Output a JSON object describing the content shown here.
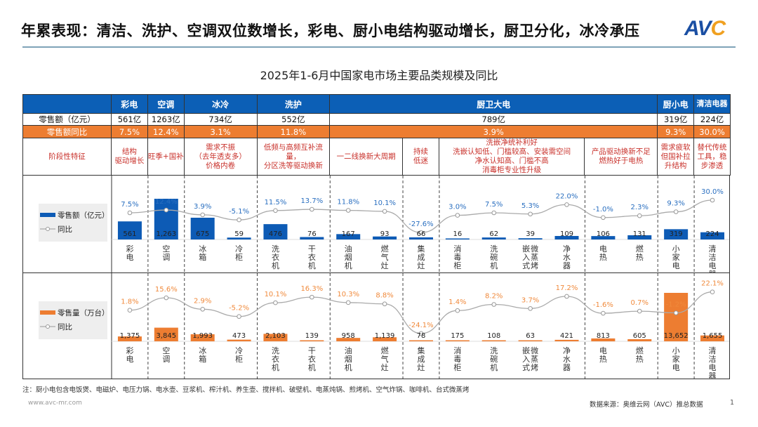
{
  "header": {
    "title": "年累表现：清洁、洗护、空调双位数增长，彩电、厨小电结构驱动增长，厨卫分化，冰冷承压",
    "logo_text": "AVC"
  },
  "subtitle": "2025年1-6月中国家电市场主要品类规模及同比",
  "table": {
    "row_labels": {
      "amount": "零售额（亿元）",
      "yoy": "零售额同比",
      "feature": "阶段性特征"
    },
    "groups": [
      {
        "name": "彩电",
        "amount": "561亿",
        "yoy": "7.5%"
      },
      {
        "name": "空调",
        "amount": "1263亿",
        "yoy": "12.4%"
      },
      {
        "name": "冰冷",
        "amount": "734亿",
        "yoy": "3.1%"
      },
      {
        "name": "洗护",
        "amount": "552亿",
        "yoy": "11.8%"
      },
      {
        "name": "厨卫大电",
        "amount": "789亿",
        "yoy": "3.9%"
      },
      {
        "name": "厨小电",
        "amount": "319亿",
        "yoy": "9.3%"
      },
      {
        "name": "清洁电器",
        "amount": "224亿",
        "yoy": "30.0%"
      }
    ],
    "features": [
      "结构\n驱动增长",
      "旺季+国补",
      "需求不振\n（去年透支多）\n价格内卷",
      "低频与高频互补流量，\n分区洗等驱动换新",
      "一二线换新大周期",
      "持续\n低迷",
      "洗嵌净统补利好\n洗嵌认知低、门槛较高、安装需空间\n净水认知高、门槛不高\n消毒柜专业性升级",
      "产品驱动换新不足\n燃热好于电热",
      "需求疲软但国补拉升结构",
      "替代传统工具，稳步渗透"
    ]
  },
  "chart_data": [
    {
      "type": "bar+line",
      "legend": {
        "bar": "零售额（亿元）",
        "line": "同比"
      },
      "categories": [
        "彩电",
        "空调",
        "冰箱",
        "冷柜",
        "洗衣机",
        "干衣机",
        "油烟机",
        "燃气灶",
        "集成灶",
        "消毒柜",
        "洗碗机",
        "嵌入式微蒸烤",
        "净水器",
        "电热",
        "燃热",
        "小家电",
        "清洁电器"
      ],
      "values": [
        561,
        1263,
        675,
        59,
        476,
        76,
        167,
        93,
        66,
        16,
        62,
        39,
        109,
        106,
        131,
        319,
        224
      ],
      "value_labels": [
        "561",
        "1,263",
        "675",
        "59",
        "476",
        "76",
        "167",
        "93",
        "66",
        "16",
        "62",
        "39",
        "109",
        "106",
        "131",
        "319",
        "224"
      ],
      "yoy": [
        7.5,
        12.4,
        3.9,
        -5.1,
        11.5,
        13.7,
        11.8,
        10.1,
        -27.6,
        3.0,
        7.5,
        5.3,
        22.0,
        -1.0,
        2.3,
        9.3,
        30.0
      ],
      "yoy_labels": [
        "7.5%",
        "12.4%",
        "3.9%",
        "-5.1%",
        "11.5%",
        "13.7%",
        "11.8%",
        "10.1%",
        "-27.6%",
        "3.0%",
        "7.5%",
        "5.3%",
        "22.0%",
        "-1.0%",
        "2.3%",
        "9.3%",
        "30.0%"
      ],
      "bar_color": "#0d5bb5",
      "label_color": "#2a6fc0"
    },
    {
      "type": "bar+line",
      "legend": {
        "bar": "零售量（万台）",
        "line": "同比"
      },
      "categories": [
        "彩电",
        "空调",
        "冰箱",
        "冷柜",
        "洗衣机",
        "干衣机",
        "油烟机",
        "燃气灶",
        "集成灶",
        "消毒柜",
        "洗碗机",
        "嵌入式微蒸烤",
        "净水器",
        "电热",
        "燃热",
        "小家电",
        "清洁电器"
      ],
      "values": [
        1375,
        3845,
        1993,
        473,
        2103,
        139,
        958,
        1139,
        78,
        175,
        108,
        63,
        421,
        813,
        605,
        13652,
        1655
      ],
      "value_labels": [
        "1,375",
        "3,845",
        "1,993",
        "473",
        "2,103",
        "139",
        "958",
        "1,139",
        "78",
        "175",
        "108",
        "63",
        "421",
        "813",
        "605",
        "13,652",
        "1,655"
      ],
      "yoy": [
        1.8,
        15.6,
        2.9,
        -5.2,
        10.1,
        16.3,
        10.3,
        8.8,
        -24.1,
        1.4,
        8.2,
        3.7,
        17.2,
        -1.6,
        0.7,
        -1.2,
        22.1
      ],
      "yoy_labels": [
        "1.8%",
        "15.6%",
        "2.9%",
        "-5.2%",
        "10.1%",
        "16.3%",
        "10.3%",
        "8.8%",
        "-24.1%",
        "1.4%",
        "8.2%",
        "3.7%",
        "17.2%",
        "-1.6%",
        "0.7%",
        "-1.2%",
        "22.1%"
      ],
      "bar_color": "#ed7d31",
      "label_color": "#f08a3c"
    }
  ],
  "footer": {
    "note": "注：厨小电包含电饭煲、电磁炉、电压力锅、电水壶、豆浆机、榨汁机、养生壶、搅拌机、破壁机、电蒸炖锅、煎烤机、空气炸锅、咖啡机、台式微蒸烤",
    "url": "www.avc-mr.com",
    "source": "数据来源：奥维云网（AVC）推总数据",
    "page": "1"
  }
}
